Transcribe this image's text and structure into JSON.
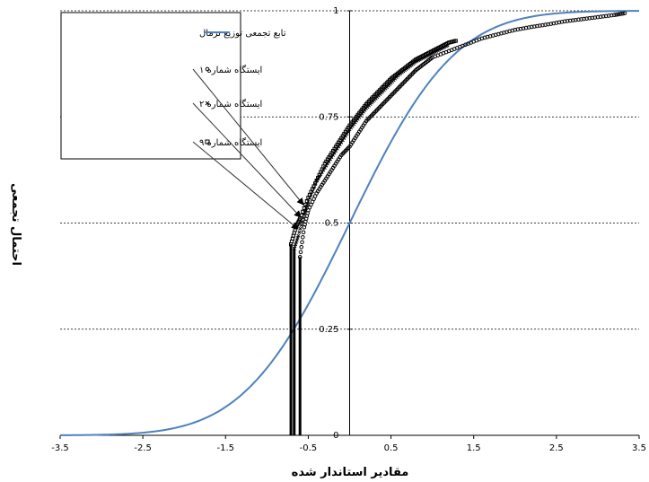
{
  "chart_data": {
    "type": "scatter",
    "xlabel": "مقادیر استاندار شده",
    "ylabel": "احتمال تجمعی",
    "xlim": [
      -3.5,
      3.5
    ],
    "ylim": [
      0,
      1
    ],
    "x_ticks": [
      "-3.5",
      "-2.5",
      "-1.5",
      "-0.5",
      "0.5",
      "1.5",
      "2.5",
      "3.5"
    ],
    "y_ticks": [
      "0",
      "0.25",
      "0.5",
      "0.75",
      "1"
    ],
    "grid": "horizontal-dashed",
    "legend_position": "top-left",
    "series": [
      {
        "name": "تابع تجمعی توزیع نرمال",
        "type": "line",
        "color": "#4f81bd",
        "distribution": "standard-normal-cdf"
      },
      {
        "name": "ایستگاه شماره ۱",
        "type": "scatter",
        "marker": "circle",
        "color": "#000000",
        "min_x": -0.6,
        "points": [
          [
            -0.6,
            0.42
          ],
          [
            -0.55,
            0.49
          ],
          [
            -0.5,
            0.53
          ],
          [
            -0.4,
            0.57
          ],
          [
            -0.3,
            0.6
          ],
          [
            -0.2,
            0.63
          ],
          [
            -0.1,
            0.66
          ],
          [
            0.0,
            0.68
          ],
          [
            0.1,
            0.71
          ],
          [
            0.2,
            0.74
          ],
          [
            0.3,
            0.76
          ],
          [
            0.4,
            0.78
          ],
          [
            0.5,
            0.8
          ],
          [
            0.6,
            0.82
          ],
          [
            0.7,
            0.84
          ],
          [
            0.8,
            0.86
          ],
          [
            0.9,
            0.875
          ],
          [
            1.0,
            0.89
          ],
          [
            1.2,
            0.905
          ],
          [
            1.4,
            0.92
          ],
          [
            1.6,
            0.935
          ],
          [
            1.8,
            0.945
          ],
          [
            2.0,
            0.955
          ],
          [
            2.2,
            0.962
          ],
          [
            2.4,
            0.968
          ],
          [
            2.6,
            0.975
          ],
          [
            2.8,
            0.98
          ],
          [
            3.0,
            0.985
          ],
          [
            3.2,
            0.99
          ],
          [
            3.35,
            0.995
          ]
        ]
      },
      {
        "name": "ایستگاه شماره ۲",
        "type": "scatter",
        "marker": "x",
        "color": "#000000",
        "min_x": -0.67,
        "points": [
          [
            -0.67,
            0.44
          ],
          [
            -0.62,
            0.47
          ],
          [
            -0.55,
            0.52
          ],
          [
            -0.5,
            0.55
          ],
          [
            -0.4,
            0.6
          ],
          [
            -0.3,
            0.63
          ],
          [
            -0.2,
            0.66
          ],
          [
            -0.1,
            0.69
          ],
          [
            0.0,
            0.72
          ],
          [
            0.1,
            0.745
          ],
          [
            0.2,
            0.77
          ],
          [
            0.3,
            0.79
          ],
          [
            0.4,
            0.81
          ],
          [
            0.5,
            0.83
          ],
          [
            0.6,
            0.85
          ],
          [
            0.7,
            0.865
          ],
          [
            0.8,
            0.88
          ],
          [
            0.9,
            0.89
          ],
          [
            1.0,
            0.9
          ],
          [
            1.1,
            0.91
          ],
          [
            1.2,
            0.92
          ]
        ]
      },
      {
        "name": "ایستگاه شماره ۹",
        "type": "scatter",
        "marker": "square",
        "color": "#000000",
        "min_x": -0.71,
        "points": [
          [
            -0.71,
            0.45
          ],
          [
            -0.65,
            0.49
          ],
          [
            -0.6,
            0.51
          ],
          [
            -0.5,
            0.56
          ],
          [
            -0.4,
            0.6
          ],
          [
            -0.3,
            0.64
          ],
          [
            -0.2,
            0.67
          ],
          [
            -0.1,
            0.7
          ],
          [
            0.0,
            0.73
          ],
          [
            0.1,
            0.755
          ],
          [
            0.2,
            0.78
          ],
          [
            0.3,
            0.8
          ],
          [
            0.4,
            0.82
          ],
          [
            0.5,
            0.84
          ],
          [
            0.6,
            0.855
          ],
          [
            0.7,
            0.87
          ],
          [
            0.8,
            0.885
          ],
          [
            0.9,
            0.895
          ],
          [
            1.0,
            0.905
          ],
          [
            1.1,
            0.915
          ],
          [
            1.2,
            0.925
          ],
          [
            1.3,
            0.93
          ]
        ]
      }
    ],
    "annotation": "arrows from each legend entry pointing to its data series near (-0.6, 0.5)"
  }
}
